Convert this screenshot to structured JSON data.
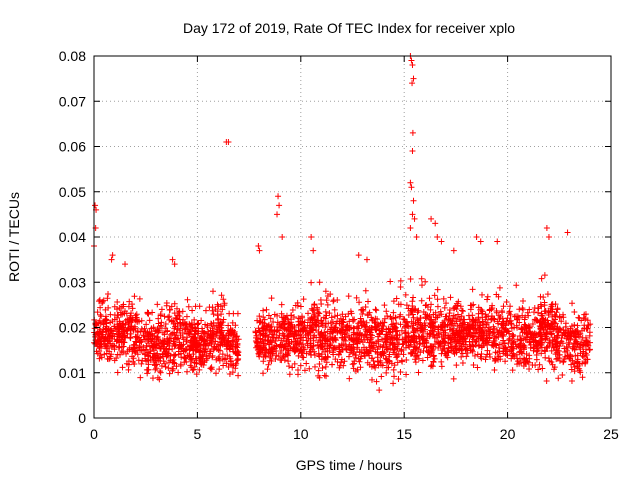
{
  "chart_data": {
    "type": "scatter",
    "title": "Day 172 of 2019, Rate Of TEC Index for receiver xplo",
    "xlabel": "GPS time / hours",
    "ylabel": "ROTI / TECUs",
    "xlim": [
      0,
      25
    ],
    "ylim": [
      0,
      0.08
    ],
    "x_ticks": [
      "0",
      "5",
      "10",
      "15",
      "20",
      "25"
    ],
    "y_ticks": [
      "0",
      "0.01",
      "0.02",
      "0.03",
      "0.04",
      "0.05",
      "0.06",
      "0.07",
      "0.08"
    ],
    "grid": true,
    "marker": "plus",
    "color": "#ff0000",
    "series": [
      {
        "name": "ROTI",
        "description": "dense band of ROTI values between 0.005 and 0.03 TECU/min from 0 to 24 h, data gap ~7.0-7.8 h",
        "band_envelope": [
          {
            "x": 0.0,
            "y_min": 0.008,
            "y_max": 0.03
          },
          {
            "x": 1.0,
            "y_min": 0.007,
            "y_max": 0.033
          },
          {
            "x": 2.0,
            "y_min": 0.006,
            "y_max": 0.03
          },
          {
            "x": 3.0,
            "y_min": 0.005,
            "y_max": 0.028
          },
          {
            "x": 4.0,
            "y_min": 0.006,
            "y_max": 0.03
          },
          {
            "x": 5.0,
            "y_min": 0.006,
            "y_max": 0.028
          },
          {
            "x": 6.0,
            "y_min": 0.007,
            "y_max": 0.032
          },
          {
            "x": 7.0,
            "y_min": 0.005,
            "y_max": 0.025
          },
          {
            "x": 8.0,
            "y_min": 0.008,
            "y_max": 0.026
          },
          {
            "x": 9.0,
            "y_min": 0.006,
            "y_max": 0.03
          },
          {
            "x": 10.0,
            "y_min": 0.006,
            "y_max": 0.032
          },
          {
            "x": 11.0,
            "y_min": 0.006,
            "y_max": 0.033
          },
          {
            "x": 12.0,
            "y_min": 0.006,
            "y_max": 0.03
          },
          {
            "x": 13.0,
            "y_min": 0.006,
            "y_max": 0.03
          },
          {
            "x": 14.0,
            "y_min": 0.005,
            "y_max": 0.03
          },
          {
            "x": 15.0,
            "y_min": 0.004,
            "y_max": 0.034
          },
          {
            "x": 16.0,
            "y_min": 0.005,
            "y_max": 0.034
          },
          {
            "x": 17.0,
            "y_min": 0.007,
            "y_max": 0.032
          },
          {
            "x": 18.0,
            "y_min": 0.008,
            "y_max": 0.03
          },
          {
            "x": 19.0,
            "y_min": 0.008,
            "y_max": 0.032
          },
          {
            "x": 20.0,
            "y_min": 0.007,
            "y_max": 0.03
          },
          {
            "x": 21.0,
            "y_min": 0.006,
            "y_max": 0.03
          },
          {
            "x": 22.0,
            "y_min": 0.006,
            "y_max": 0.035
          },
          {
            "x": 23.0,
            "y_min": 0.004,
            "y_max": 0.028
          },
          {
            "x": 24.0,
            "y_min": 0.008,
            "y_max": 0.027
          }
        ],
        "outliers": [
          {
            "x": 0.05,
            "y": 0.047
          },
          {
            "x": 0.1,
            "y": 0.046
          },
          {
            "x": 0.08,
            "y": 0.042
          },
          {
            "x": 0.0,
            "y": 0.038
          },
          {
            "x": 0.9,
            "y": 0.036
          },
          {
            "x": 0.85,
            "y": 0.035
          },
          {
            "x": 1.5,
            "y": 0.034
          },
          {
            "x": 3.8,
            "y": 0.035
          },
          {
            "x": 3.9,
            "y": 0.034
          },
          {
            "x": 6.4,
            "y": 0.061
          },
          {
            "x": 6.5,
            "y": 0.061
          },
          {
            "x": 7.95,
            "y": 0.038
          },
          {
            "x": 8.0,
            "y": 0.037
          },
          {
            "x": 8.9,
            "y": 0.049
          },
          {
            "x": 8.95,
            "y": 0.047
          },
          {
            "x": 8.85,
            "y": 0.045
          },
          {
            "x": 9.1,
            "y": 0.04
          },
          {
            "x": 10.5,
            "y": 0.04
          },
          {
            "x": 10.6,
            "y": 0.037
          },
          {
            "x": 12.8,
            "y": 0.036
          },
          {
            "x": 15.3,
            "y": 0.08
          },
          {
            "x": 15.35,
            "y": 0.079
          },
          {
            "x": 15.4,
            "y": 0.078
          },
          {
            "x": 15.45,
            "y": 0.075
          },
          {
            "x": 15.38,
            "y": 0.074
          },
          {
            "x": 15.42,
            "y": 0.063
          },
          {
            "x": 15.4,
            "y": 0.059
          },
          {
            "x": 15.3,
            "y": 0.052
          },
          {
            "x": 15.35,
            "y": 0.051
          },
          {
            "x": 15.45,
            "y": 0.048
          },
          {
            "x": 15.4,
            "y": 0.045
          },
          {
            "x": 15.5,
            "y": 0.044
          },
          {
            "x": 15.3,
            "y": 0.042
          },
          {
            "x": 15.6,
            "y": 0.04
          },
          {
            "x": 16.3,
            "y": 0.044
          },
          {
            "x": 16.5,
            "y": 0.043
          },
          {
            "x": 16.6,
            "y": 0.04
          },
          {
            "x": 16.8,
            "y": 0.039
          },
          {
            "x": 18.5,
            "y": 0.04
          },
          {
            "x": 18.7,
            "y": 0.039
          },
          {
            "x": 19.5,
            "y": 0.039
          },
          {
            "x": 21.9,
            "y": 0.042
          },
          {
            "x": 22.0,
            "y": 0.04
          },
          {
            "x": 22.9,
            "y": 0.041
          },
          {
            "x": 17.4,
            "y": 0.037
          },
          {
            "x": 13.2,
            "y": 0.035
          }
        ]
      }
    ]
  }
}
